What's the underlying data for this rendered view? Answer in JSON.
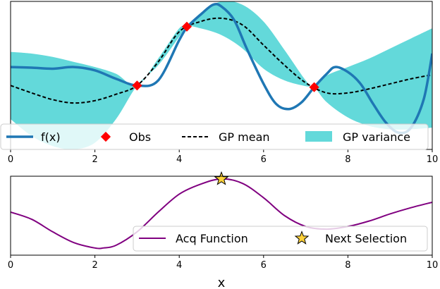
{
  "colors": {
    "f": "#1f77b4",
    "obs": "#ff0000",
    "gp_mean": "#000000",
    "gp_variance": "#63d9da",
    "acq": "#800080",
    "next": "#ffd23a",
    "next_edge": "#000000"
  },
  "chart_data": [
    {
      "type": "line",
      "panel": "top",
      "xlim": [
        0,
        10
      ],
      "ylim": [
        -2.4,
        2.0
      ],
      "xticks": [
        "0",
        "2",
        "4",
        "6",
        "8",
        "10"
      ],
      "grid": false,
      "legend_position": "bottom",
      "legend": [
        "f(x)",
        "Obs",
        "GP mean",
        "GP variance"
      ],
      "series": [
        {
          "name": "f(x)",
          "style": "solid",
          "x": [
            0,
            0.5,
            1.0,
            1.5,
            2.0,
            2.5,
            3.0,
            3.5,
            4.0,
            4.2,
            4.5,
            4.8,
            5.0,
            5.3,
            5.6,
            6.0,
            6.3,
            6.6,
            6.9,
            7.2,
            7.5,
            7.7,
            8.0,
            8.3,
            8.6,
            8.9,
            9.2,
            9.5,
            9.8,
            10.0
          ],
          "y": [
            0.05,
            0.03,
            0.0,
            0.05,
            -0.05,
            -0.3,
            -0.5,
            -0.35,
            0.85,
            1.25,
            1.6,
            1.9,
            1.85,
            1.45,
            0.6,
            -0.45,
            -1.05,
            -1.2,
            -1.0,
            -0.55,
            -0.15,
            0.05,
            -0.1,
            -0.45,
            -1.05,
            -1.6,
            -1.9,
            -1.75,
            -0.9,
            0.45
          ]
        },
        {
          "name": "GP mean",
          "style": "dashed",
          "x": [
            0,
            0.5,
            1.0,
            1.5,
            2.0,
            2.5,
            3.0,
            3.5,
            4.0,
            4.5,
            5.0,
            5.5,
            6.0,
            6.5,
            7.0,
            7.5,
            8.0,
            8.5,
            9.0,
            9.5,
            10.0
          ],
          "y": [
            -0.5,
            -0.72,
            -0.92,
            -1.02,
            -0.95,
            -0.76,
            -0.5,
            0.2,
            1.1,
            1.4,
            1.5,
            1.3,
            0.7,
            0.1,
            -0.42,
            -0.72,
            -0.72,
            -0.6,
            -0.45,
            -0.3,
            -0.18
          ]
        }
      ],
      "band": {
        "name": "GP variance",
        "x": [
          0,
          0.5,
          1.0,
          1.5,
          2.0,
          2.5,
          3.0,
          3.5,
          4.0,
          4.18,
          4.5,
          5.0,
          5.5,
          6.0,
          6.5,
          7.0,
          7.2,
          7.5,
          8.0,
          8.5,
          9.0,
          9.5,
          10.0
        ],
        "lower": [
          -1.5,
          -2.0,
          -2.3,
          -2.4,
          -2.2,
          -1.5,
          -0.5,
          0.1,
          0.95,
          1.25,
          1.2,
          1.0,
          0.6,
          0.0,
          -0.35,
          -0.52,
          -0.55,
          -1.0,
          -1.45,
          -1.7,
          -1.8,
          -1.8,
          -1.75
        ],
        "upper": [
          0.5,
          0.45,
          0.35,
          0.2,
          0.05,
          -0.15,
          -0.5,
          0.3,
          1.2,
          1.25,
          1.65,
          2.0,
          1.9,
          1.4,
          0.55,
          -0.35,
          -0.55,
          -0.2,
          0.05,
          0.3,
          0.6,
          0.9,
          1.2
        ]
      },
      "observations": {
        "name": "Obs",
        "x": [
          3.0,
          4.18,
          7.2
        ],
        "y": [
          -0.5,
          1.25,
          -0.55
        ]
      }
    },
    {
      "type": "line",
      "panel": "bottom",
      "xlim": [
        0,
        10
      ],
      "ylim": [
        -0.4,
        4.0
      ],
      "xticks": [
        "0",
        "2",
        "4",
        "6",
        "8",
        "10"
      ],
      "xlabel": "x",
      "grid": false,
      "legend_position": "lower-right",
      "legend": [
        "Acq Function",
        "Next Selection"
      ],
      "series": [
        {
          "name": "Acq Function",
          "x": [
            0,
            0.5,
            1.0,
            1.5,
            2.0,
            2.2,
            2.5,
            3.0,
            3.5,
            4.0,
            4.5,
            5.0,
            5.5,
            6.0,
            6.5,
            7.0,
            7.5,
            8.0,
            8.5,
            9.0,
            9.5,
            10.0
          ],
          "y": [
            2.0,
            1.6,
            0.9,
            0.3,
            0.0,
            0.0,
            0.15,
            0.9,
            2.0,
            3.0,
            3.55,
            3.85,
            3.6,
            2.8,
            1.8,
            1.2,
            1.05,
            1.2,
            1.5,
            1.9,
            2.25,
            2.55
          ]
        }
      ],
      "next_selection": {
        "name": "Next Selection",
        "x": 5.0,
        "y": 3.85
      }
    }
  ]
}
